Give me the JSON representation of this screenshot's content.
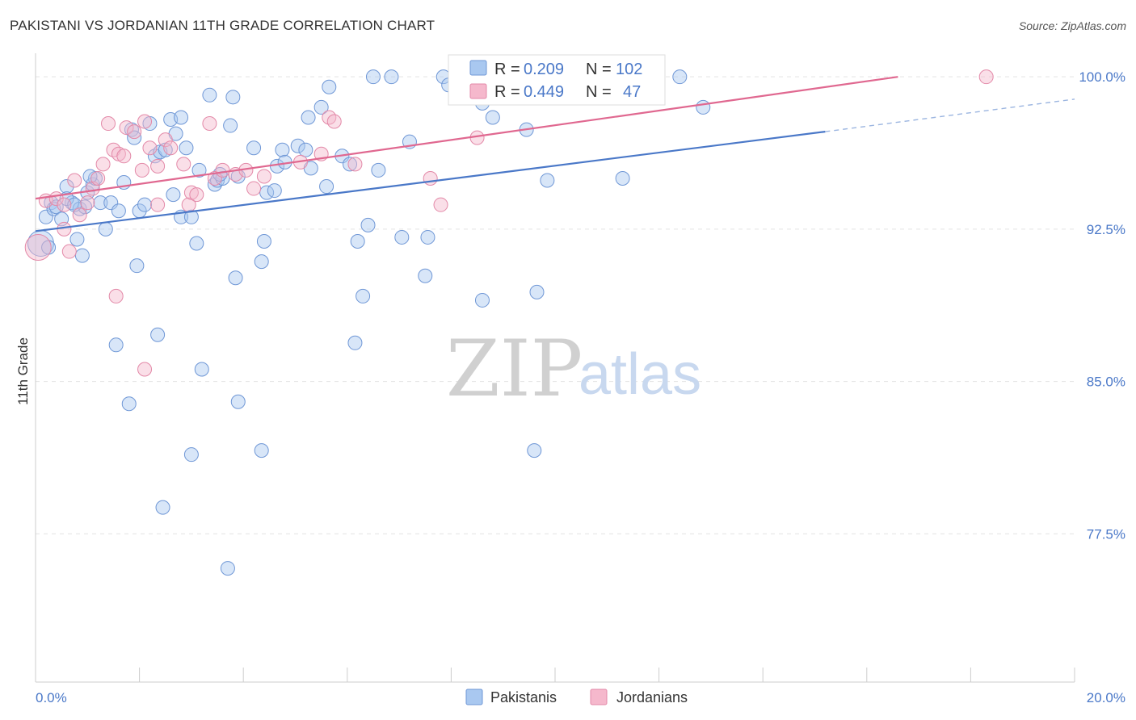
{
  "header": {
    "title": "PAKISTANI VS JORDANIAN 11TH GRADE CORRELATION CHART",
    "source": "Source: ZipAtlas.com"
  },
  "watermark": {
    "zip": "ZIP",
    "atlas": "atlas"
  },
  "colors": {
    "blue": "#4a78c8",
    "blue_fill": "#a9c8f0",
    "pink": "#e06890",
    "pink_fill": "#f5b8cc",
    "grid": "#e3e3e3"
  },
  "legend_stats": {
    "series1": {
      "r_label": "R = ",
      "r_value": "0.209",
      "n_label": "N = ",
      "n_value": "102"
    },
    "series2": {
      "r_label": "R = ",
      "r_value": "0.449",
      "n_label": "N = ",
      "n_value": "47"
    }
  },
  "chart_data": {
    "type": "scatter",
    "title": "PAKISTANI VS JORDANIAN 11TH GRADE CORRELATION CHART",
    "xlabel": "",
    "ylabel": "11th Grade",
    "xlim": [
      0.0,
      20.0
    ],
    "ylim": [
      70.2,
      101.0
    ],
    "y_ticks": [
      {
        "value": 100.0,
        "label": "100.0%"
      },
      {
        "value": 92.5,
        "label": "92.5%"
      },
      {
        "value": 85.0,
        "label": "85.0%"
      },
      {
        "value": 77.5,
        "label": "77.5%"
      }
    ],
    "x_tick_labels": [
      {
        "value": 0.0,
        "label": "0.0%"
      },
      {
        "value": 20.0,
        "label": "20.0%"
      }
    ],
    "legend_position": "bottom-center",
    "series": [
      {
        "name": "Pakistanis",
        "color": "#4a78c8",
        "r": 0.209,
        "n": 102,
        "trend": {
          "x0": 0.0,
          "y0": 92.4,
          "x1": 15.2,
          "y1": 97.3,
          "dash_to_x": 20.0,
          "dash_to_y": 98.9
        },
        "points": [
          [
            0.1,
            91.8,
            2
          ],
          [
            0.2,
            93.1,
            1
          ],
          [
            0.25,
            91.6,
            1
          ],
          [
            0.3,
            93.8,
            1
          ],
          [
            0.35,
            93.5,
            1
          ],
          [
            0.4,
            93.6,
            1
          ],
          [
            0.5,
            93.0,
            1
          ],
          [
            0.6,
            94.6,
            1
          ],
          [
            0.7,
            93.8,
            1
          ],
          [
            0.8,
            92.0,
            1
          ],
          [
            0.85,
            93.5,
            1
          ],
          [
            0.9,
            91.2,
            1
          ],
          [
            0.95,
            93.6,
            1
          ],
          [
            1.0,
            94.3,
            1
          ],
          [
            1.1,
            94.7,
            1
          ],
          [
            1.15,
            95.0,
            1
          ],
          [
            1.25,
            93.8,
            1
          ],
          [
            1.35,
            92.5,
            1
          ],
          [
            1.45,
            93.8,
            1
          ],
          [
            1.6,
            93.4,
            1
          ],
          [
            1.7,
            94.8,
            1
          ],
          [
            1.85,
            97.4,
            1
          ],
          [
            1.9,
            97.0,
            1
          ],
          [
            1.95,
            90.7,
            1
          ],
          [
            2.0,
            93.4,
            1
          ],
          [
            2.1,
            93.7,
            1
          ],
          [
            2.2,
            97.7,
            1
          ],
          [
            2.3,
            96.1,
            1
          ],
          [
            2.4,
            96.3,
            1
          ],
          [
            2.5,
            96.4,
            1
          ],
          [
            2.6,
            97.9,
            1
          ],
          [
            2.7,
            97.2,
            1
          ],
          [
            2.8,
            98.0,
            1
          ],
          [
            2.65,
            94.2,
            1
          ],
          [
            2.8,
            93.1,
            1
          ],
          [
            3.0,
            93.1,
            1
          ],
          [
            3.1,
            91.8,
            1
          ],
          [
            3.15,
            95.4,
            1
          ],
          [
            3.35,
            99.1,
            1
          ],
          [
            3.45,
            94.7,
            1
          ],
          [
            3.5,
            94.9,
            1
          ],
          [
            3.6,
            95.0,
            1
          ],
          [
            3.75,
            97.6,
            1
          ],
          [
            3.8,
            99.0,
            1
          ],
          [
            3.9,
            95.1,
            1
          ],
          [
            3.85,
            90.1,
            1
          ],
          [
            4.2,
            96.5,
            1
          ],
          [
            4.35,
            90.9,
            1
          ],
          [
            4.4,
            91.9,
            1
          ],
          [
            4.45,
            94.3,
            1
          ],
          [
            4.6,
            94.4,
            1
          ],
          [
            4.65,
            95.6,
            1
          ],
          [
            4.75,
            96.4,
            1
          ],
          [
            5.05,
            96.6,
            1
          ],
          [
            5.2,
            96.4,
            1
          ],
          [
            5.25,
            98.0,
            1
          ],
          [
            5.3,
            95.5,
            1
          ],
          [
            5.5,
            98.5,
            1
          ],
          [
            5.65,
            99.5,
            1
          ],
          [
            5.9,
            96.1,
            1
          ],
          [
            6.05,
            95.7,
            1
          ],
          [
            6.15,
            86.9,
            1
          ],
          [
            6.2,
            91.9,
            1
          ],
          [
            6.3,
            89.2,
            1
          ],
          [
            6.4,
            92.7,
            1
          ],
          [
            6.5,
            100.0,
            1
          ],
          [
            6.85,
            100.0,
            1
          ],
          [
            7.05,
            92.1,
            1
          ],
          [
            7.5,
            90.2,
            1
          ],
          [
            7.55,
            92.1,
            1
          ],
          [
            7.85,
            100.0,
            1
          ],
          [
            7.95,
            99.6,
            1
          ],
          [
            8.6,
            98.7,
            1
          ],
          [
            8.8,
            98.0,
            1
          ],
          [
            8.65,
            100.0,
            1
          ],
          [
            9.1,
            100.0,
            1
          ],
          [
            8.6,
            89.0,
            1
          ],
          [
            9.45,
            97.4,
            1
          ],
          [
            9.85,
            94.9,
            1
          ],
          [
            9.6,
            81.6,
            1
          ],
          [
            9.65,
            89.4,
            1
          ],
          [
            11.3,
            95.0,
            1
          ],
          [
            12.4,
            100.0,
            1
          ],
          [
            12.85,
            98.5,
            1
          ],
          [
            1.55,
            86.8,
            1
          ],
          [
            1.8,
            83.9,
            1
          ],
          [
            2.35,
            87.3,
            1
          ],
          [
            2.45,
            78.8,
            1
          ],
          [
            3.0,
            81.4,
            1
          ],
          [
            3.2,
            85.6,
            1
          ],
          [
            3.9,
            84.0,
            1
          ],
          [
            4.35,
            81.6,
            1
          ],
          [
            3.7,
            75.8,
            1
          ],
          [
            0.6,
            94.0,
            1
          ],
          [
            0.75,
            93.7,
            1
          ],
          [
            1.05,
            95.1,
            1
          ],
          [
            2.9,
            96.5,
            1
          ],
          [
            3.55,
            95.2,
            1
          ],
          [
            4.8,
            95.8,
            1
          ],
          [
            5.6,
            94.6,
            1
          ],
          [
            6.6,
            95.4,
            1
          ],
          [
            7.2,
            96.8,
            1
          ]
        ]
      },
      {
        "name": "Jordanians",
        "color": "#e06890",
        "r": 0.449,
        "n": 47,
        "trend": {
          "x0": 0.0,
          "y0": 94.0,
          "x1": 16.6,
          "y1": 100.0
        },
        "points": [
          [
            0.05,
            91.6,
            2
          ],
          [
            0.2,
            93.9,
            1
          ],
          [
            0.4,
            94.0,
            1
          ],
          [
            0.55,
            93.7,
            1
          ],
          [
            0.55,
            92.5,
            1
          ],
          [
            0.65,
            91.4,
            1
          ],
          [
            0.75,
            94.9,
            1
          ],
          [
            0.85,
            93.2,
            1
          ],
          [
            1.0,
            93.8,
            1
          ],
          [
            1.1,
            94.5,
            1
          ],
          [
            1.2,
            95.0,
            1
          ],
          [
            1.3,
            95.7,
            1
          ],
          [
            1.4,
            97.7,
            1
          ],
          [
            1.5,
            96.4,
            1
          ],
          [
            1.6,
            96.2,
            1
          ],
          [
            1.7,
            96.1,
            1
          ],
          [
            1.75,
            97.5,
            1
          ],
          [
            1.9,
            97.3,
            1
          ],
          [
            2.05,
            95.4,
            1
          ],
          [
            2.1,
            97.8,
            1
          ],
          [
            2.2,
            96.5,
            1
          ],
          [
            2.35,
            95.6,
            1
          ],
          [
            2.5,
            96.9,
            1
          ],
          [
            2.6,
            96.5,
            1
          ],
          [
            2.85,
            95.7,
            1
          ],
          [
            2.95,
            93.7,
            1
          ],
          [
            3.0,
            94.3,
            1
          ],
          [
            3.1,
            94.2,
            1
          ],
          [
            3.35,
            97.7,
            1
          ],
          [
            3.45,
            95.0,
            1
          ],
          [
            3.6,
            95.4,
            1
          ],
          [
            3.85,
            95.2,
            1
          ],
          [
            4.05,
            95.4,
            1
          ],
          [
            4.2,
            94.5,
            1
          ],
          [
            4.4,
            95.1,
            1
          ],
          [
            5.1,
            95.8,
            1
          ],
          [
            5.5,
            96.2,
            1
          ],
          [
            5.65,
            98.0,
            1
          ],
          [
            5.75,
            97.8,
            1
          ],
          [
            6.15,
            95.7,
            1
          ],
          [
            7.6,
            95.0,
            1
          ],
          [
            7.8,
            93.7,
            1
          ],
          [
            8.5,
            97.0,
            1
          ],
          [
            1.55,
            89.2,
            1
          ],
          [
            2.1,
            85.6,
            1
          ],
          [
            2.35,
            93.7,
            1
          ],
          [
            18.3,
            100.0,
            1
          ]
        ]
      }
    ]
  },
  "legend_bottom": {
    "items": [
      {
        "label": "Pakistanis"
      },
      {
        "label": "Jordanians"
      }
    ]
  }
}
